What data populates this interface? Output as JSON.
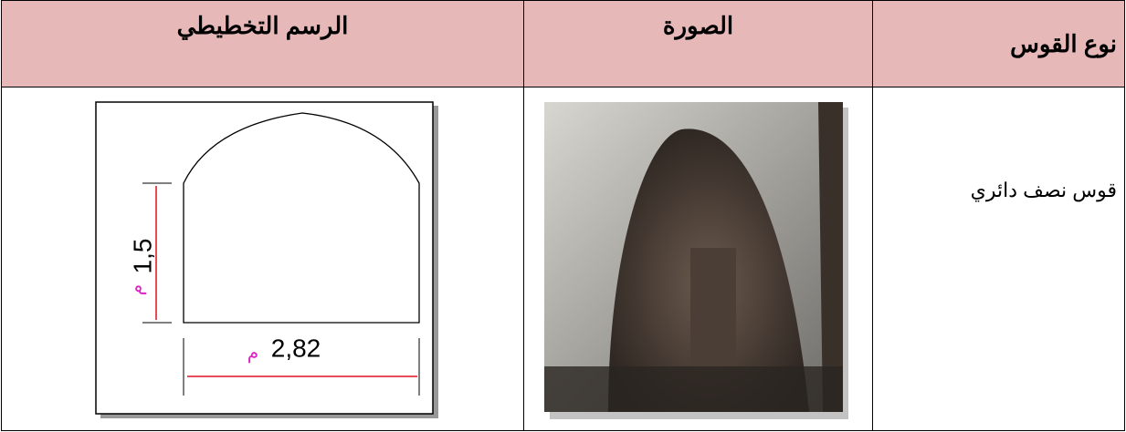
{
  "table": {
    "header": [
      "نوع القوس",
      "الصورة",
      "الرسم التخطيطي"
    ],
    "rows": [
      [
        "قوس نصف دائري"
      ]
    ]
  },
  "diagram": {
    "height_label": "1,5",
    "width_label": "2,82",
    "unit": "م"
  }
}
